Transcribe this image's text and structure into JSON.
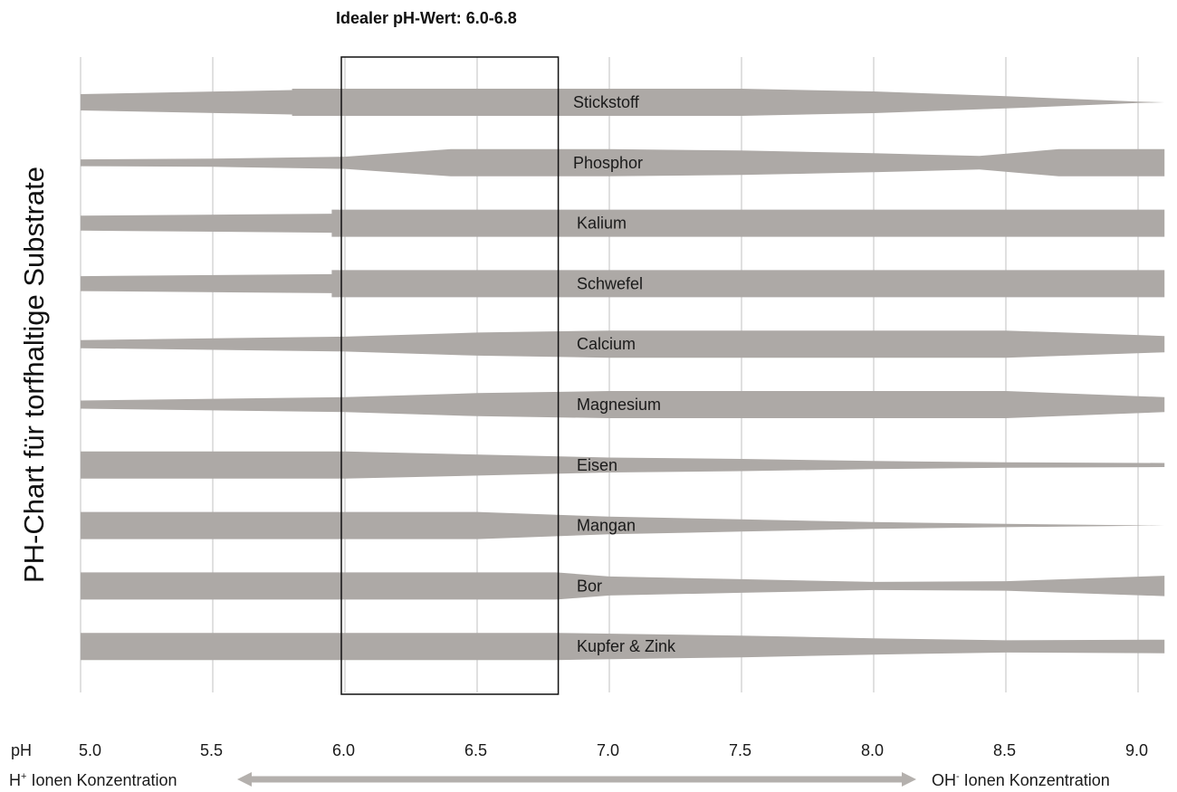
{
  "chart_data": {
    "type": "area",
    "title": "Idealer pH-Wert: 6.0-6.8",
    "ylabel": "PH-Chart für torfhaltige Substrate",
    "xlabel": "pH",
    "x_ticks": [
      "5.0",
      "5.5",
      "6.0",
      "6.5",
      "7.0",
      "7.5",
      "8.0",
      "8.5",
      "9.0"
    ],
    "xlim": [
      5.0,
      9.1
    ],
    "ideal_range": [
      6.0,
      6.8
    ],
    "grid": true,
    "band_color": "#ada9a6",
    "footer_left": {
      "base": "H",
      "sup": "+",
      "rest": " Ionen Konzentration"
    },
    "footer_right": {
      "base": "OH",
      "sup": "-",
      "rest": " Ionen Konzentration"
    },
    "series": [
      {
        "name": "Stickstoff",
        "x": [
          5.0,
          5.8,
          5.8,
          7.5,
          8.0,
          8.5,
          9.0,
          9.1
        ],
        "values": [
          0.6,
          0.9,
          1.0,
          1.0,
          0.8,
          0.45,
          0.05,
          0.0
        ]
      },
      {
        "name": "Phosphor",
        "x": [
          5.0,
          5.5,
          6.0,
          6.4,
          7.0,
          7.5,
          8.0,
          8.4,
          8.7,
          9.1
        ],
        "values": [
          0.25,
          0.3,
          0.45,
          1.0,
          1.0,
          0.9,
          0.7,
          0.5,
          1.0,
          1.0
        ]
      },
      {
        "name": "Kalium",
        "x": [
          5.0,
          5.95,
          5.95,
          9.1
        ],
        "values": [
          0.55,
          0.7,
          1.0,
          1.0
        ]
      },
      {
        "name": "Schwefel",
        "x": [
          5.0,
          5.95,
          5.95,
          9.1
        ],
        "values": [
          0.55,
          0.7,
          1.0,
          1.0
        ]
      },
      {
        "name": "Calcium",
        "x": [
          5.0,
          6.0,
          6.5,
          7.0,
          8.5,
          9.1
        ],
        "values": [
          0.3,
          0.55,
          0.85,
          1.0,
          1.0,
          0.6
        ]
      },
      {
        "name": "Magnesium",
        "x": [
          5.0,
          6.0,
          6.5,
          7.0,
          8.5,
          9.1
        ],
        "values": [
          0.3,
          0.55,
          0.85,
          1.0,
          1.0,
          0.55
        ]
      },
      {
        "name": "Eisen",
        "x": [
          5.0,
          6.0,
          7.0,
          7.5,
          8.0,
          8.5,
          9.1
        ],
        "values": [
          1.0,
          1.0,
          0.55,
          0.45,
          0.3,
          0.2,
          0.15
        ]
      },
      {
        "name": "Mangan",
        "x": [
          5.0,
          6.5,
          6.5,
          7.0,
          7.5,
          8.0,
          8.5,
          9.1
        ],
        "values": [
          1.0,
          1.0,
          1.0,
          0.65,
          0.45,
          0.25,
          0.12,
          0.0
        ]
      },
      {
        "name": "Bor",
        "x": [
          5.0,
          6.8,
          7.0,
          7.5,
          8.0,
          8.5,
          9.1
        ],
        "values": [
          1.0,
          1.0,
          0.7,
          0.5,
          0.3,
          0.35,
          0.75
        ]
      },
      {
        "name": "Kupfer & Zink",
        "x": [
          5.0,
          6.8,
          7.5,
          8.0,
          8.5,
          9.1
        ],
        "values": [
          1.0,
          1.0,
          0.8,
          0.6,
          0.45,
          0.5
        ]
      }
    ]
  }
}
